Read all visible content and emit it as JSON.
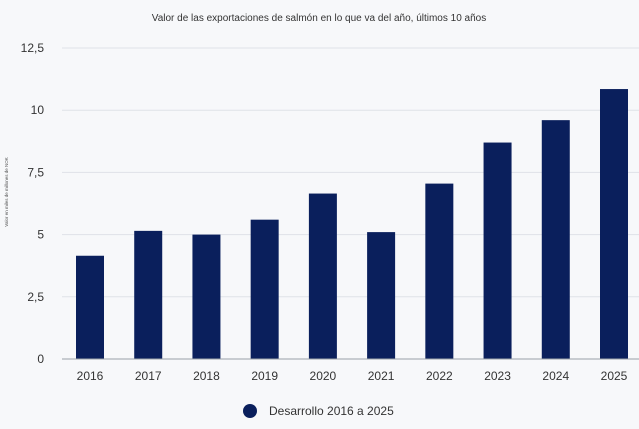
{
  "chart_data": {
    "type": "bar",
    "title": "Valor de las exportaciones de salmón en lo que va del año, últimos 10 años",
    "ylabel": "Valor en miles de millones de NOK",
    "xlabel": "",
    "categories": [
      "2016",
      "2017",
      "2018",
      "2019",
      "2020",
      "2021",
      "2022",
      "2023",
      "2024",
      "2025"
    ],
    "series": [
      {
        "name": "Desarrollo 2016 a 2025",
        "values": [
          4.15,
          5.15,
          5.0,
          5.6,
          6.65,
          5.1,
          7.05,
          8.7,
          9.6,
          10.85
        ],
        "color": "#0a1f5c"
      }
    ],
    "yticks": [
      "0",
      "2,5",
      "5",
      "7,5",
      "10",
      "12,5"
    ],
    "ytick_values": [
      0,
      2.5,
      5,
      7.5,
      10,
      12.5
    ],
    "ylim": [
      0,
      12.5
    ],
    "grid": true,
    "legend_position": "bottom-center"
  }
}
